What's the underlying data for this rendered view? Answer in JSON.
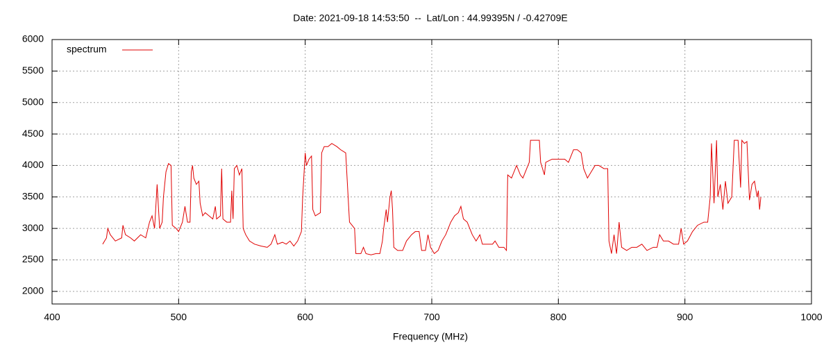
{
  "chart_data": {
    "type": "line",
    "title": "Date: 2021-09-18 14:53:50  --  Lat/Lon : 44.99395N / -0.42709E",
    "x_label": "Frequency (MHz)",
    "xlim": [
      400,
      1000
    ],
    "xticks": [
      400,
      500,
      600,
      700,
      800,
      900,
      1000
    ],
    "ylim": [
      1800,
      6000
    ],
    "yticks": [
      2000,
      2500,
      3000,
      3500,
      4000,
      4500,
      5000,
      5500,
      6000
    ],
    "grid": true,
    "legend": "top left",
    "x": [
      440,
      443,
      444,
      446,
      450,
      455,
      456,
      458,
      462,
      465,
      470,
      474,
      477,
      479,
      481,
      483,
      485,
      487,
      488,
      490,
      492,
      494,
      495,
      498,
      500,
      503,
      505,
      507,
      509,
      510,
      511,
      512,
      514,
      516,
      517,
      519,
      521,
      524,
      527,
      529,
      530,
      533,
      534,
      535,
      538,
      541,
      542,
      543,
      544,
      546,
      548,
      550,
      551,
      553,
      556,
      560,
      565,
      570,
      573,
      576,
      578,
      582,
      585,
      588,
      591,
      594,
      597,
      598,
      600,
      601,
      603,
      605,
      606,
      608,
      612,
      613,
      615,
      618,
      621,
      625,
      628,
      632,
      635,
      637,
      639,
      640,
      644,
      646,
      648,
      652,
      656,
      659,
      661,
      662,
      664,
      665,
      667,
      668,
      669,
      670,
      673,
      677,
      680,
      684,
      687,
      690,
      692,
      695,
      697,
      699,
      702,
      705,
      708,
      711,
      715,
      718,
      721,
      723,
      725,
      728,
      732,
      735,
      738,
      740,
      745,
      748,
      750,
      753,
      757,
      759,
      760,
      763,
      765,
      767,
      770,
      772,
      775,
      777,
      778,
      781,
      785,
      786,
      789,
      790,
      795,
      800,
      805,
      808,
      810,
      812,
      815,
      818,
      820,
      823,
      826,
      829,
      832,
      836,
      839,
      840,
      842,
      844,
      846,
      848,
      850,
      854,
      858,
      862,
      866,
      870,
      875,
      878,
      880,
      883,
      887,
      891,
      895,
      897,
      899,
      902,
      906,
      910,
      915,
      918,
      920,
      921,
      923,
      925,
      926,
      928,
      930,
      932,
      934,
      937,
      939,
      942,
      944,
      945,
      947,
      949,
      951,
      953,
      955,
      957,
      958,
      959,
      960
    ],
    "series": [
      {
        "name": "spectrum",
        "color": "#e00000",
        "values": [
          2750,
          2850,
          3000,
          2900,
          2800,
          2850,
          3050,
          2900,
          2850,
          2800,
          2900,
          2850,
          3100,
          3200,
          3000,
          3700,
          3000,
          3100,
          3500,
          3900,
          4030,
          4000,
          3050,
          3000,
          2950,
          3100,
          3350,
          3100,
          3100,
          3900,
          4000,
          3800,
          3700,
          3750,
          3400,
          3200,
          3250,
          3200,
          3150,
          3350,
          3150,
          3200,
          3950,
          3150,
          3100,
          3100,
          3600,
          3150,
          3950,
          4000,
          3850,
          3950,
          3000,
          2900,
          2800,
          2750,
          2720,
          2700,
          2750,
          2900,
          2750,
          2780,
          2750,
          2800,
          2720,
          2800,
          2950,
          3500,
          4200,
          4000,
          4100,
          4150,
          3300,
          3200,
          3250,
          4200,
          4300,
          4300,
          4350,
          4300,
          4250,
          4200,
          3100,
          3050,
          3000,
          2600,
          2600,
          2700,
          2600,
          2580,
          2600,
          2600,
          2800,
          3000,
          3300,
          3100,
          3500,
          3600,
          3300,
          2700,
          2650,
          2650,
          2800,
          2900,
          2950,
          2950,
          2650,
          2650,
          2900,
          2700,
          2600,
          2650,
          2800,
          2900,
          3100,
          3200,
          3250,
          3350,
          3150,
          3100,
          2900,
          2800,
          2900,
          2750,
          2750,
          2750,
          2800,
          2700,
          2700,
          2650,
          3850,
          3800,
          3900,
          4000,
          3850,
          3800,
          3950,
          4050,
          4400,
          4400,
          4400,
          4050,
          3850,
          4050,
          4100,
          4100,
          4100,
          4050,
          4150,
          4250,
          4250,
          4200,
          3950,
          3800,
          3900,
          4000,
          4000,
          3950,
          3950,
          2800,
          2600,
          2900,
          2600,
          3100,
          2700,
          2650,
          2700,
          2700,
          2750,
          2650,
          2700,
          2700,
          2900,
          2800,
          2800,
          2750,
          2750,
          3000,
          2750,
          2800,
          2950,
          3050,
          3100,
          3100,
          3500,
          4350,
          3400,
          4400,
          3500,
          3700,
          3300,
          3750,
          3400,
          3500,
          4400,
          4400,
          3650,
          4400,
          4350,
          4380,
          3450,
          3700,
          3750,
          3500,
          3600,
          3300,
          3500
        ]
      }
    ]
  }
}
